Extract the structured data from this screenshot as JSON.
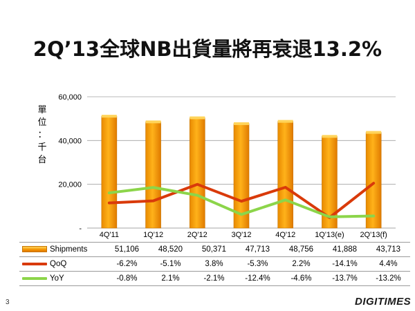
{
  "slide": {
    "title": "2Q’13全球NB出貨量將再衰退13.2%",
    "page_number": "3",
    "brand": "DIGITIMES"
  },
  "colors": {
    "bar_top": "#ffd45a",
    "bar_main": "#f39200",
    "bar_edge": "#c77400",
    "qoq_line": "#d93a0a",
    "yoy_line": "#8cd54a",
    "grid": "#a0a0a0"
  },
  "chart_data": {
    "type": "bar",
    "categories": [
      "4Q'11",
      "1Q'12",
      "2Q'12",
      "3Q'12",
      "4Q'12",
      "1Q'13(e)",
      "2Q'13(f)"
    ],
    "ylabel": "單位：千台",
    "ylim": [
      0,
      60000
    ],
    "y_ticks": [
      {
        "value": 0,
        "label": "-"
      },
      {
        "value": 20000,
        "label": "20,000"
      },
      {
        "value": 40000,
        "label": "40,000"
      },
      {
        "value": 60000,
        "label": "60,000"
      }
    ],
    "grid": true,
    "series": [
      {
        "name": "Shipments",
        "kind": "bar",
        "color": "#f39200",
        "values": [
          51106,
          48520,
          50371,
          47713,
          48756,
          41888,
          43713
        ],
        "labels": [
          "51,106",
          "48,520",
          "50,371",
          "47,713",
          "48,756",
          "41,888",
          "43,713"
        ]
      },
      {
        "name": "QoQ",
        "kind": "line",
        "color": "#d93a0a",
        "values": [
          -6.2,
          -5.1,
          3.8,
          -5.3,
          2.2,
          -14.1,
          4.4
        ],
        "labels": [
          "-6.2%",
          "-5.1%",
          "3.8%",
          "-5.3%",
          "2.2%",
          "-14.1%",
          "4.4%"
        ]
      },
      {
        "name": "YoY",
        "kind": "line",
        "color": "#8cd54a",
        "values": [
          -0.8,
          2.1,
          -2.1,
          -12.4,
          -4.6,
          -13.7,
          -13.2
        ],
        "labels": [
          "-0.8%",
          "2.1%",
          "-2.1%",
          "-12.4%",
          "-4.6%",
          "-13.7%",
          "-13.2%"
        ]
      }
    ]
  }
}
